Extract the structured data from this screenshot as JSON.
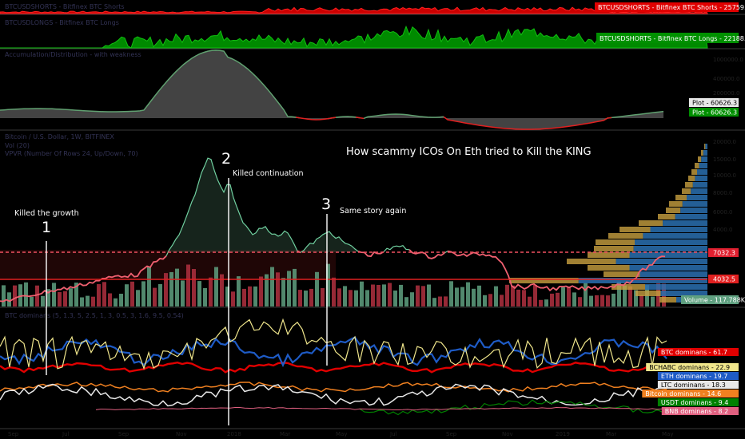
{
  "panels": {
    "shorts": {
      "title": "BTCUSDSHORTS - Bitfinex BTC Shorts",
      "tag": "BTCUSDSHORTS - Bitfinex BTC Shorts - 25759.2",
      "color": "#e00000"
    },
    "longs": {
      "title": "BTCUSDLONGS - Bitfinex BTC Longs",
      "tag": "BTCUSDSHORTS - Bitfinex BTC Longs - 22188.8",
      "color": "#009000"
    },
    "acc_dist": {
      "title": "Accumulation/Distribution - with weakness",
      "tag_white": "Plot - 60626.3",
      "tag_green": "Plot - 60626.3",
      "y_ticks": [
        "1000000.0",
        "400000.0",
        "200000.0"
      ]
    },
    "price": {
      "title": "Bitcoin / U.S. Dollar, 1W, BITFINEX",
      "sub1": "Vol (20)",
      "sub2": "VPVR (Number Of Rows 24, Up/Down, 70)",
      "headline": "How scammy ICOs On Eth tried to Kill the KING",
      "tag_high": "7032.3",
      "tag_low": "4032.5",
      "tag_volume": "Volume - 117.788K",
      "y_ticks": [
        "20000.0",
        "15000.0",
        "10000.0",
        "8000.0",
        "6000.0",
        "4000.0"
      ]
    },
    "dominance": {
      "title": "BTC dominans (5, 1.3, 5, 2.5, 1, 3, 0.5, 3, 1.6, 9.5, 0.54)",
      "tags": [
        {
          "label": "BTC dominans - 61.7",
          "color": "#e00000"
        },
        {
          "label": "BCHABC dominans - 22.9",
          "color": "#f0e68c"
        },
        {
          "label": "ETH dominans - 19.7",
          "color": "#1e5bc6"
        },
        {
          "label": "LTC dominans - 18.3",
          "color": "#e8e8e8"
        },
        {
          "label": "Bitcoin dominans - 14.6",
          "color": "#f08020"
        },
        {
          "label": "USDT dominans - 9.4",
          "color": "#008000"
        },
        {
          "label": "BNB dominans - 8.2",
          "color": "#e06080"
        }
      ]
    }
  },
  "annotations": [
    {
      "number": "1",
      "text": "Killed the growth"
    },
    {
      "number": "2",
      "text": "Killed continuation"
    },
    {
      "number": "3",
      "text": "Same story again"
    }
  ],
  "x_axis": [
    "Sep",
    "Jul",
    "Sep",
    "Nov",
    "2018",
    "Mar",
    "May",
    "Jul",
    "Sep",
    "Nov",
    "2019",
    "Mar",
    "May"
  ],
  "colors": {
    "price_line": "#f06070",
    "candle_green": "#5fa080",
    "candle_red": "#b03040",
    "vpvr_yellow": "#c8a040",
    "vpvr_blue": "#2a70b0"
  },
  "chart_data": {
    "type": "line",
    "title": "How scammy ICOs On Eth tried to Kill the KING",
    "annotations": [
      "Killed the growth",
      "Killed continuation",
      "Same story again"
    ],
    "horizontal_levels": [
      7032.3,
      4032.5
    ],
    "last_values": {
      "BTC dominans": 61.7,
      "BCHABC dominans": 22.9,
      "ETH dominans": 19.7,
      "LTC dominans": 18.3,
      "Bitcoin dominans": 14.6,
      "USDT dominans": 9.4,
      "BNB dominans": 8.2,
      "Volume": "117.788K",
      "Plot": 60626.3,
      "Bitfinex BTC Shorts": 25759.2,
      "Bitfinex BTC Longs": 22188.8
    }
  }
}
